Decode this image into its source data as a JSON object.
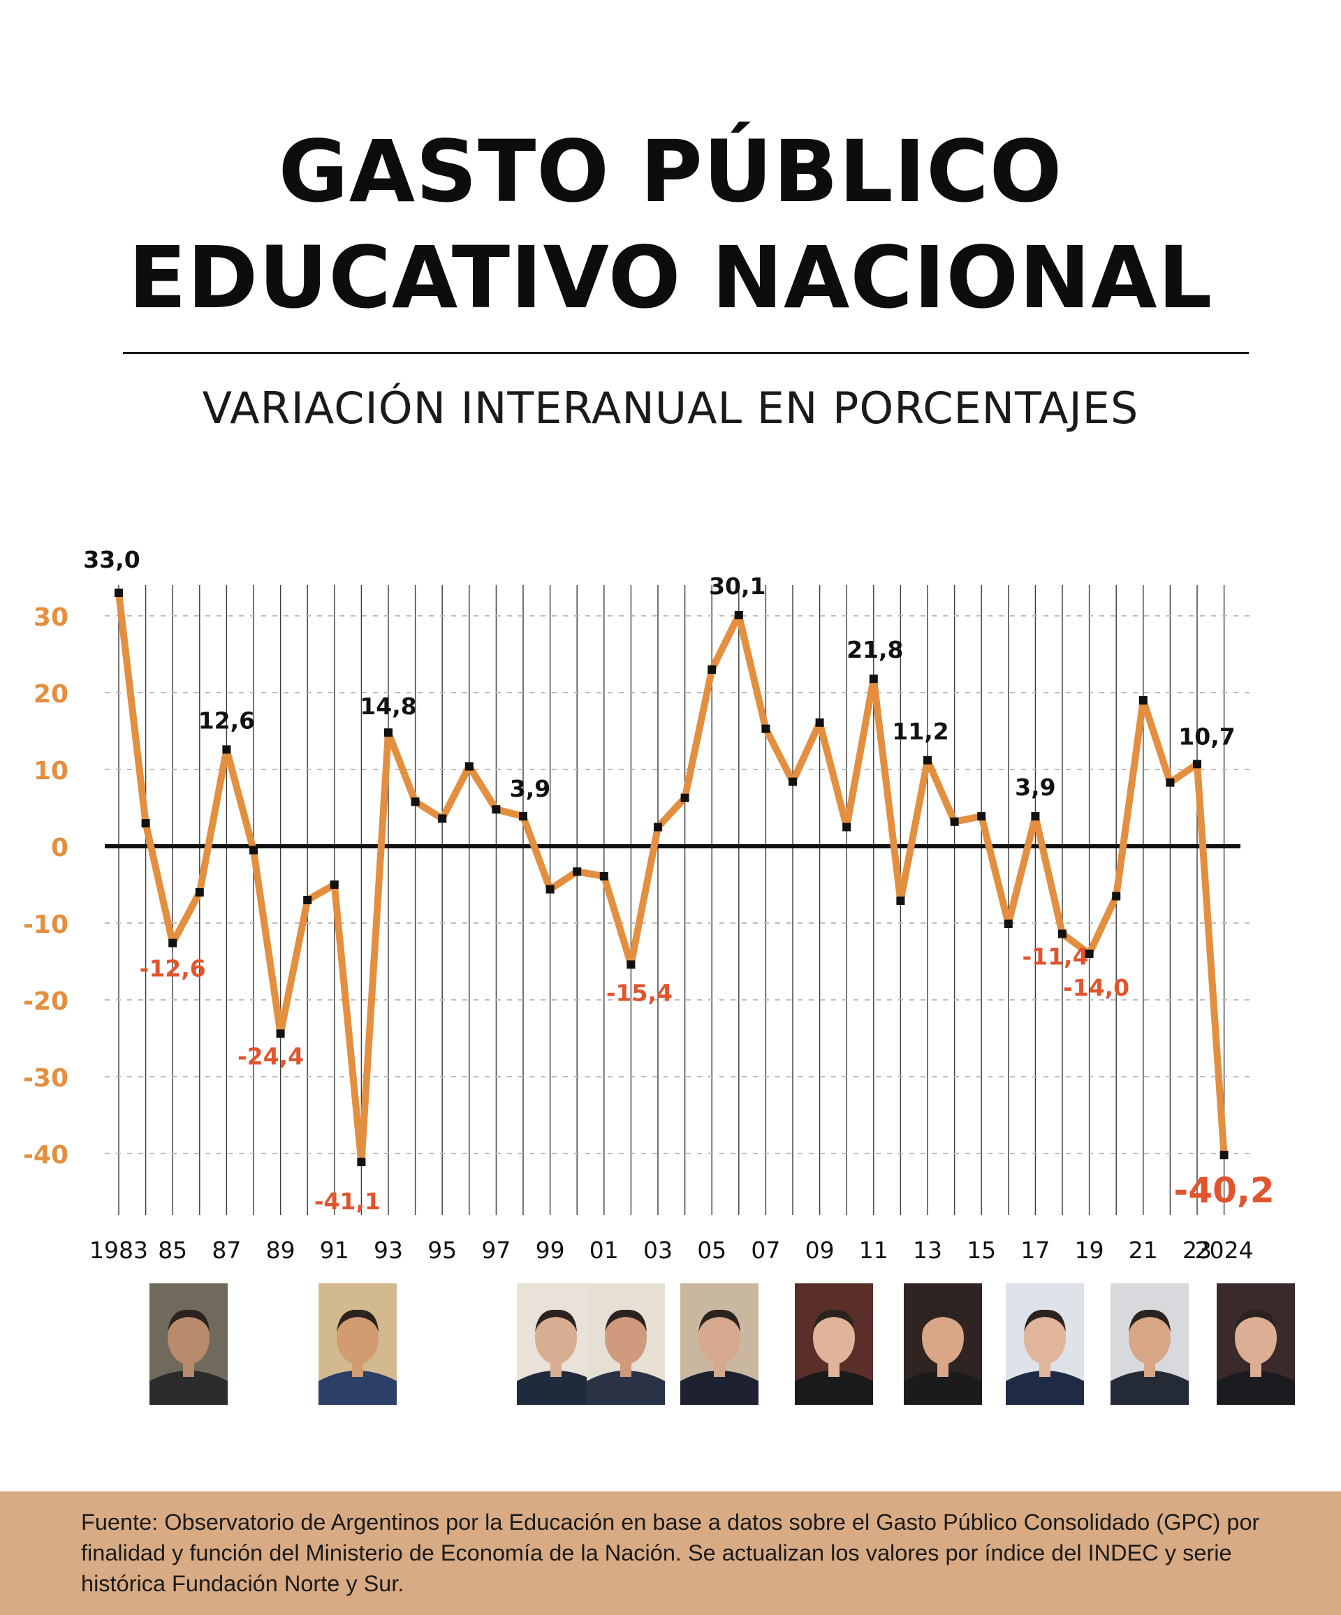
{
  "title_lines": [
    "GASTO PÚBLICO",
    "EDUCATIVO NACIONAL"
  ],
  "subtitle": "VARIACIÓN INTERANUAL EN PORCENTAJES",
  "source_note": "Fuente: Observatorio de Argentinos por la Educación en base a datos sobre el Gasto Público Consolidado (GPC) por finalidad y función del Ministerio de Economía de la Nación. Se actualizan los valores por índice del INDEC y serie histórica Fundación Norte y Sur.",
  "colors": {
    "line": "#e38f3f",
    "axis_tick_label": "#e38f3f",
    "negative_label": "#e0552d",
    "positive_label": "#111111",
    "zero_line": "#111111",
    "footer_bg": "#d9ab84"
  },
  "portraits": [
    {
      "name": "president-portrait-1983",
      "icon": "person-photo"
    },
    {
      "name": "president-portrait-1989",
      "icon": "person-photo"
    },
    {
      "name": "president-portrait-1999",
      "icon": "person-photo"
    },
    {
      "name": "president-portrait-2001",
      "icon": "person-photo"
    },
    {
      "name": "president-portrait-2003",
      "icon": "person-photo"
    },
    {
      "name": "president-portrait-2007",
      "icon": "person-photo"
    },
    {
      "name": "president-portrait-2011",
      "icon": "person-photo"
    },
    {
      "name": "president-portrait-2015",
      "icon": "person-photo"
    },
    {
      "name": "president-portrait-2019",
      "icon": "person-photo"
    },
    {
      "name": "president-portrait-2023",
      "icon": "person-photo"
    }
  ],
  "chart_data": {
    "type": "line",
    "title": "GASTO PÚBLICO EDUCATIVO NACIONAL",
    "subtitle": "VARIACIÓN INTERANUAL EN PORCENTAJES",
    "xlabel": "",
    "ylabel": "",
    "x": [
      1983,
      1984,
      1985,
      1986,
      1987,
      1988,
      1989,
      1990,
      1991,
      1992,
      1993,
      1994,
      1995,
      1996,
      1997,
      1998,
      1999,
      2000,
      2001,
      2002,
      2003,
      2004,
      2005,
      2006,
      2007,
      2008,
      2009,
      2010,
      2011,
      2012,
      2013,
      2014,
      2015,
      2016,
      2017,
      2018,
      2019,
      2020,
      2021,
      2022,
      2023,
      2024
    ],
    "x_tick_labels": [
      {
        "x": 1983,
        "label": "1983"
      },
      {
        "x": 1985,
        "label": "85"
      },
      {
        "x": 1987,
        "label": "87"
      },
      {
        "x": 1989,
        "label": "89"
      },
      {
        "x": 1991,
        "label": "91"
      },
      {
        "x": 1993,
        "label": "93"
      },
      {
        "x": 1995,
        "label": "95"
      },
      {
        "x": 1997,
        "label": "97"
      },
      {
        "x": 1999,
        "label": "99"
      },
      {
        "x": 2001,
        "label": "01"
      },
      {
        "x": 2003,
        "label": "03"
      },
      {
        "x": 2005,
        "label": "05"
      },
      {
        "x": 2007,
        "label": "07"
      },
      {
        "x": 2009,
        "label": "09"
      },
      {
        "x": 2011,
        "label": "11"
      },
      {
        "x": 2013,
        "label": "13"
      },
      {
        "x": 2015,
        "label": "15"
      },
      {
        "x": 2017,
        "label": "17"
      },
      {
        "x": 2019,
        "label": "19"
      },
      {
        "x": 2021,
        "label": "21"
      },
      {
        "x": 2023,
        "label": "23"
      },
      {
        "x": 2024,
        "label": "2024"
      }
    ],
    "series": [
      {
        "values": [
          33.0,
          3.0,
          -12.6,
          -6.0,
          12.6,
          -0.5,
          -24.4,
          -7.0,
          -5.0,
          -41.1,
          14.8,
          5.8,
          3.6,
          10.4,
          4.8,
          3.9,
          -5.6,
          -3.3,
          -3.9,
          -15.4,
          2.5,
          6.3,
          23.0,
          30.1,
          15.3,
          8.4,
          16.1,
          2.5,
          21.8,
          -7.1,
          11.2,
          3.2,
          3.9,
          -10.1,
          3.9,
          -11.4,
          -14.0,
          -6.5,
          19.0,
          8.3,
          10.7,
          -40.2
        ]
      }
    ],
    "data_labels": [
      {
        "x": 1983,
        "text": "33,0"
      },
      {
        "x": 1985,
        "text": "-12,6"
      },
      {
        "x": 1987,
        "text": "12,6"
      },
      {
        "x": 1989,
        "text": "-24,4"
      },
      {
        "x": 1992,
        "text": "-41,1"
      },
      {
        "x": 1993,
        "text": "14,8"
      },
      {
        "x": 1998,
        "text": "3,9"
      },
      {
        "x": 2002,
        "text": "-15,4"
      },
      {
        "x": 2006,
        "text": "30,1"
      },
      {
        "x": 2011,
        "text": "21,8"
      },
      {
        "x": 2013,
        "text": "11,2"
      },
      {
        "x": 2017,
        "text": "3,9"
      },
      {
        "x": 2018,
        "text": "-11,4"
      },
      {
        "x": 2019,
        "text": "-14,0"
      },
      {
        "x": 2023,
        "text": "10,7"
      },
      {
        "x": 2024,
        "text": "-40,2"
      }
    ],
    "y_ticks": [
      {
        "value": 30,
        "label": "30"
      },
      {
        "value": 20,
        "label": "20"
      },
      {
        "value": 10,
        "label": "10"
      },
      {
        "value": 0,
        "label": "0"
      },
      {
        "value": -10,
        "label": "-10"
      },
      {
        "value": -20,
        "label": "-20"
      },
      {
        "value": -30,
        "label": "-30"
      },
      {
        "value": -40,
        "label": "-40"
      }
    ],
    "ylim": [
      -48,
      34
    ],
    "grid": "vertical solid per year, horizontal dashed per 10",
    "legend": "none"
  }
}
